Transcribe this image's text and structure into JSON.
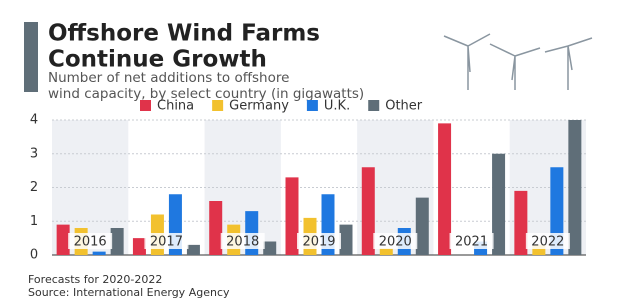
{
  "chart_data": {
    "type": "bar",
    "title": "Offshore Wind Farms Continue Growth",
    "subtitle": "Number of net additions to offshore wind capacity, by select country (in gigawatts)",
    "categories": [
      "2016",
      "2017",
      "2018",
      "2019",
      "2020",
      "2021",
      "2022"
    ],
    "series": [
      {
        "name": "China",
        "color": "#e0334a",
        "values": [
          0.9,
          0.5,
          1.6,
          2.3,
          2.6,
          3.9,
          1.9
        ]
      },
      {
        "name": "Germany",
        "color": "#f2c12e",
        "values": [
          0.8,
          1.2,
          0.9,
          1.1,
          0.2,
          0,
          0.3
        ]
      },
      {
        "name": "U.K.",
        "color": "#1f78e0",
        "values": [
          0.1,
          1.8,
          1.3,
          1.8,
          0.8,
          0.4,
          2.6
        ]
      },
      {
        "name": "Other",
        "color": "#5f6e78",
        "values": [
          0.8,
          0.3,
          0.4,
          0.9,
          1.7,
          3.0,
          4.0
        ]
      }
    ],
    "ylim": [
      0,
      4
    ],
    "yticks": [
      0,
      1,
      2,
      3,
      4
    ],
    "grid": true,
    "notes": [
      "Forecasts for 2020-2022",
      "Source: International Energy Agency"
    ]
  }
}
